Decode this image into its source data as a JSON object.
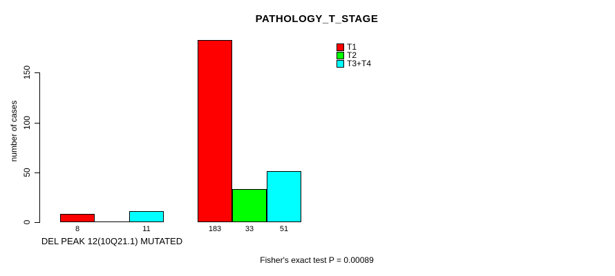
{
  "title": "PATHOLOGY_T_STAGE",
  "footer": "Fisher's exact test P = 0.00089",
  "y_axis": {
    "label": "number of cases",
    "ticks": [
      0,
      50,
      100,
      150
    ]
  },
  "x_axis": {
    "group_label": "DEL PEAK 12(10Q21.1) MUTATED"
  },
  "legend": [
    {
      "label": "T1",
      "color": "#FF0000"
    },
    {
      "label": "T2",
      "color": "#00FF00"
    },
    {
      "label": "T3+T4",
      "color": "#00FFFF"
    }
  ],
  "chart_data": {
    "type": "bar",
    "title": "PATHOLOGY_T_STAGE",
    "ylabel": "number of cases",
    "xlabel": "",
    "ylim": [
      0,
      190
    ],
    "yticks": [
      0,
      50,
      100,
      150
    ],
    "grid": false,
    "legend_position": "top-right-inside",
    "categories": [
      "DEL PEAK 12(10Q21.1) MUTATED",
      ""
    ],
    "series": [
      {
        "name": "T1",
        "color": "#FF0000",
        "values": [
          8,
          183
        ]
      },
      {
        "name": "T2",
        "color": "#00FF00",
        "values": [
          0,
          33
        ]
      },
      {
        "name": "T3+T4",
        "color": "#00FFFF",
        "values": [
          11,
          51
        ]
      }
    ],
    "bar_value_labels_shown": [
      "8",
      "11",
      "183",
      "33",
      "51"
    ],
    "annotation": "Fisher's exact test P = 0.00089"
  }
}
